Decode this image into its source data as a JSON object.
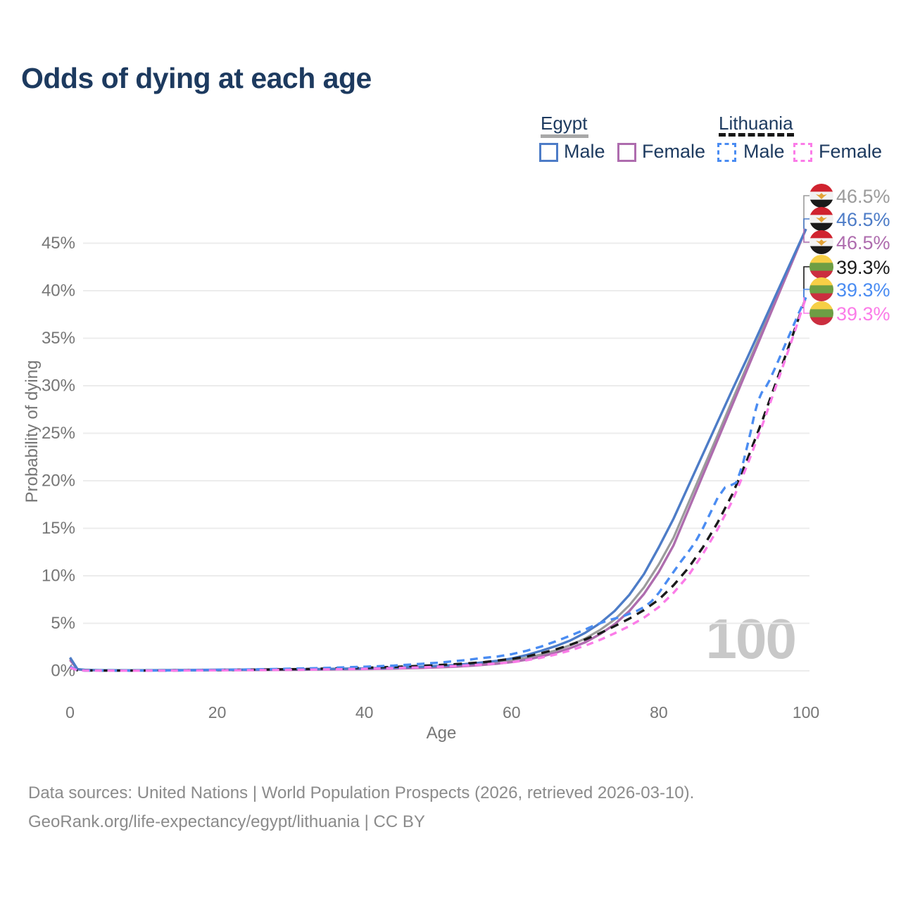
{
  "title": "Odds of dying at each age",
  "watermark": "100",
  "footer": {
    "line1": "Data sources: United Nations | World Population Prospects (2026, retrieved 2026-03-10).",
    "line2": "GeoRank.org/life-expectancy/egypt/lithuania | CC BY"
  },
  "colors": {
    "title": "#1d3a5f",
    "legend_text": "#1d3a5f",
    "axis": "#767676",
    "grid": "#ececec",
    "footer": "#8b8b8b",
    "watermark": "#c8c8c8",
    "egypt_underline": "#a8a8a8",
    "lithuania_underline": "#161616",
    "egypt_male": "#4d7cc7",
    "egypt_female": "#ae6cae",
    "egypt_both": "#9b9b9b",
    "lithuania_male": "#4a8cf2",
    "lithuania_female": "#fb7ce8",
    "lithuania_both": "#1a1a1a",
    "flag_egypt_red": "#d0232f",
    "flag_egypt_white": "#f2f2f2",
    "flag_egypt_black": "#1a1a1a",
    "flag_egypt_gold": "#e3a337",
    "flag_lith_yellow": "#f6cf46",
    "flag_lith_green": "#6d9e44",
    "flag_lith_red": "#cb2e3f"
  },
  "legend": {
    "groups": [
      {
        "label": "Egypt",
        "line_style": "solid",
        "items": [
          {
            "label": "Male",
            "color": "egypt_male",
            "dashed": false
          },
          {
            "label": "Female",
            "color": "egypt_female",
            "dashed": false
          }
        ]
      },
      {
        "label": "Lithuania",
        "line_style": "dashed",
        "items": [
          {
            "label": "Male",
            "color": "lithuania_male",
            "dashed": true
          },
          {
            "label": "Female",
            "color": "lithuania_female",
            "dashed": true
          }
        ]
      }
    ]
  },
  "chart_data": {
    "type": "line",
    "title": "Odds of dying at each age",
    "xlabel": "Age",
    "ylabel": "Probability of dying",
    "xlim": [
      0,
      100
    ],
    "ylim": [
      0,
      48
    ],
    "grid": "horizontal",
    "x_ticks": [
      {
        "v": 0,
        "label": "0"
      },
      {
        "v": 20,
        "label": "20"
      },
      {
        "v": 40,
        "label": "40"
      },
      {
        "v": 60,
        "label": "60"
      },
      {
        "v": 80,
        "label": "80"
      },
      {
        "v": 100,
        "label": "100"
      }
    ],
    "y_ticks": [
      {
        "v": 0,
        "label": "0%"
      },
      {
        "v": 5,
        "label": "5%"
      },
      {
        "v": 10,
        "label": "10%"
      },
      {
        "v": 15,
        "label": "15%"
      },
      {
        "v": 20,
        "label": "20%"
      },
      {
        "v": 25,
        "label": "25%"
      },
      {
        "v": 30,
        "label": "30%"
      },
      {
        "v": 35,
        "label": "35%"
      },
      {
        "v": 40,
        "label": "40%"
      },
      {
        "v": 45,
        "label": "45%"
      }
    ],
    "series": [
      {
        "id": "egypt-both",
        "name": "Egypt Both sexes",
        "color": "egypt_both",
        "dash": null,
        "width": 3.2,
        "points": [
          [
            0,
            1.3
          ],
          [
            1,
            0.16
          ],
          [
            2,
            0.09
          ],
          [
            4,
            0.06
          ],
          [
            8,
            0.05
          ],
          [
            12,
            0.06
          ],
          [
            16,
            0.08
          ],
          [
            20,
            0.1
          ],
          [
            25,
            0.11
          ],
          [
            30,
            0.13
          ],
          [
            35,
            0.17
          ],
          [
            40,
            0.22
          ],
          [
            44,
            0.28
          ],
          [
            48,
            0.37
          ],
          [
            52,
            0.5
          ],
          [
            55,
            0.66
          ],
          [
            58,
            0.88
          ],
          [
            60,
            1.08
          ],
          [
            62,
            1.36
          ],
          [
            64,
            1.72
          ],
          [
            66,
            2.15
          ],
          [
            68,
            2.7
          ],
          [
            70,
            3.4
          ],
          [
            72,
            4.3
          ],
          [
            74,
            5.4
          ],
          [
            76,
            6.9
          ],
          [
            78,
            8.8
          ],
          [
            80,
            11.2
          ],
          [
            82,
            14.0
          ],
          [
            84,
            17.6
          ],
          [
            86,
            21.2
          ],
          [
            88,
            24.8
          ],
          [
            90,
            28.5
          ],
          [
            92,
            32.1
          ],
          [
            94,
            35.7
          ],
          [
            96,
            39.3
          ],
          [
            98,
            42.9
          ],
          [
            100,
            46.5
          ]
        ]
      },
      {
        "id": "egypt-female",
        "name": "Egypt Female",
        "color": "egypt_female",
        "dash": null,
        "width": 3.4,
        "points": [
          [
            0,
            1.15
          ],
          [
            1,
            0.14
          ],
          [
            2,
            0.08
          ],
          [
            4,
            0.05
          ],
          [
            8,
            0.045
          ],
          [
            12,
            0.05
          ],
          [
            16,
            0.06
          ],
          [
            20,
            0.08
          ],
          [
            25,
            0.09
          ],
          [
            30,
            0.11
          ],
          [
            35,
            0.14
          ],
          [
            40,
            0.18
          ],
          [
            44,
            0.24
          ],
          [
            48,
            0.31
          ],
          [
            52,
            0.42
          ],
          [
            55,
            0.56
          ],
          [
            58,
            0.75
          ],
          [
            60,
            0.92
          ],
          [
            62,
            1.17
          ],
          [
            64,
            1.5
          ],
          [
            66,
            1.9
          ],
          [
            68,
            2.4
          ],
          [
            70,
            3.0
          ],
          [
            72,
            3.85
          ],
          [
            74,
            4.9
          ],
          [
            76,
            6.3
          ],
          [
            78,
            8.1
          ],
          [
            80,
            10.4
          ],
          [
            82,
            13.2
          ],
          [
            84,
            16.9
          ],
          [
            86,
            20.6
          ],
          [
            88,
            24.3
          ],
          [
            90,
            28.0
          ],
          [
            92,
            31.7
          ],
          [
            94,
            35.4
          ],
          [
            96,
            39.1
          ],
          [
            98,
            42.8
          ],
          [
            100,
            46.5
          ]
        ]
      },
      {
        "id": "egypt-male",
        "name": "Egypt Male",
        "color": "egypt_male",
        "dash": null,
        "width": 3.4,
        "points": [
          [
            0,
            1.4
          ],
          [
            1,
            0.18
          ],
          [
            2,
            0.1
          ],
          [
            4,
            0.07
          ],
          [
            8,
            0.06
          ],
          [
            12,
            0.07
          ],
          [
            16,
            0.09
          ],
          [
            20,
            0.11
          ],
          [
            25,
            0.13
          ],
          [
            30,
            0.16
          ],
          [
            35,
            0.2
          ],
          [
            40,
            0.26
          ],
          [
            44,
            0.33
          ],
          [
            48,
            0.44
          ],
          [
            52,
            0.6
          ],
          [
            55,
            0.8
          ],
          [
            58,
            1.05
          ],
          [
            60,
            1.3
          ],
          [
            62,
            1.65
          ],
          [
            64,
            2.1
          ],
          [
            66,
            2.6
          ],
          [
            68,
            3.2
          ],
          [
            70,
            4.0
          ],
          [
            72,
            5.0
          ],
          [
            74,
            6.3
          ],
          [
            76,
            8.0
          ],
          [
            78,
            10.2
          ],
          [
            80,
            13.0
          ],
          [
            82,
            16.0
          ],
          [
            84,
            19.4
          ],
          [
            86,
            22.8
          ],
          [
            88,
            26.2
          ],
          [
            90,
            29.6
          ],
          [
            92,
            32.9
          ],
          [
            94,
            36.3
          ],
          [
            96,
            39.7
          ],
          [
            98,
            43.1
          ],
          [
            100,
            46.5
          ]
        ]
      },
      {
        "id": "lithuania-both",
        "name": "Lithuania Both sexes",
        "color": "lithuania_both",
        "dash": "12 9",
        "width": 3.4,
        "points": [
          [
            0,
            0.4
          ],
          [
            1,
            0.05
          ],
          [
            2,
            0.035
          ],
          [
            4,
            0.025
          ],
          [
            8,
            0.02
          ],
          [
            12,
            0.025
          ],
          [
            16,
            0.05
          ],
          [
            20,
            0.08
          ],
          [
            24,
            0.11
          ],
          [
            28,
            0.15
          ],
          [
            32,
            0.19
          ],
          [
            36,
            0.25
          ],
          [
            40,
            0.32
          ],
          [
            44,
            0.41
          ],
          [
            48,
            0.53
          ],
          [
            52,
            0.68
          ],
          [
            56,
            0.9
          ],
          [
            60,
            1.25
          ],
          [
            62,
            1.5
          ],
          [
            64,
            1.85
          ],
          [
            66,
            2.25
          ],
          [
            68,
            2.75
          ],
          [
            70,
            3.3
          ],
          [
            72,
            3.95
          ],
          [
            74,
            4.7
          ],
          [
            76,
            5.5
          ],
          [
            78,
            6.4
          ],
          [
            80,
            7.5
          ],
          [
            82,
            9.0
          ],
          [
            84,
            10.8
          ],
          [
            86,
            13.0
          ],
          [
            88,
            15.6
          ],
          [
            90,
            18.6
          ],
          [
            92,
            22.2
          ],
          [
            94,
            26.2
          ],
          [
            96,
            30.5
          ],
          [
            98,
            34.9
          ],
          [
            100,
            39.3
          ]
        ]
      },
      {
        "id": "lithuania-male",
        "name": "Lithuania Male",
        "color": "lithuania_male",
        "dash": "11 8",
        "width": 3.4,
        "points": [
          [
            0,
            0.45
          ],
          [
            1,
            0.06
          ],
          [
            2,
            0.04
          ],
          [
            4,
            0.03
          ],
          [
            8,
            0.025
          ],
          [
            12,
            0.03
          ],
          [
            16,
            0.06
          ],
          [
            20,
            0.1
          ],
          [
            24,
            0.14
          ],
          [
            28,
            0.19
          ],
          [
            32,
            0.25
          ],
          [
            36,
            0.33
          ],
          [
            40,
            0.43
          ],
          [
            44,
            0.55
          ],
          [
            48,
            0.75
          ],
          [
            50,
            0.85
          ],
          [
            52,
            1.0
          ],
          [
            54,
            1.15
          ],
          [
            56,
            1.35
          ],
          [
            58,
            1.5
          ],
          [
            60,
            1.75
          ],
          [
            62,
            2.1
          ],
          [
            64,
            2.55
          ],
          [
            66,
            3.1
          ],
          [
            68,
            3.7
          ],
          [
            70,
            4.35
          ],
          [
            71,
            4.7
          ],
          [
            72,
            5.0
          ],
          [
            73,
            5.3
          ],
          [
            74,
            5.5
          ],
          [
            75,
            5.7
          ],
          [
            76,
            6.0
          ],
          [
            77,
            6.3
          ],
          [
            78,
            6.7
          ],
          [
            79,
            7.3
          ],
          [
            80,
            8.2
          ],
          [
            81,
            9.3
          ],
          [
            82,
            10.4
          ],
          [
            83,
            11.5
          ],
          [
            84,
            12.5
          ],
          [
            85,
            13.6
          ],
          [
            86,
            15.0
          ],
          [
            87,
            16.6
          ],
          [
            88,
            18.2
          ],
          [
            89,
            19.3
          ],
          [
            90,
            19.6
          ],
          [
            90.5,
            19.8
          ],
          [
            91,
            20.8
          ],
          [
            91.5,
            22.0
          ],
          [
            92,
            23.6
          ],
          [
            92.5,
            25.2
          ],
          [
            93,
            27.0
          ],
          [
            93.5,
            28.4
          ],
          [
            94,
            29.3
          ],
          [
            94.5,
            29.8
          ],
          [
            95,
            30.5
          ],
          [
            96,
            32.2
          ],
          [
            97,
            34.0
          ],
          [
            98,
            35.8
          ],
          [
            99,
            37.6
          ],
          [
            100,
            39.3
          ]
        ]
      },
      {
        "id": "lithuania-female",
        "name": "Lithuania Female",
        "color": "lithuania_female",
        "dash": "10 8",
        "width": 3.4,
        "points": [
          [
            0,
            0.35
          ],
          [
            1,
            0.045
          ],
          [
            2,
            0.03
          ],
          [
            4,
            0.02
          ],
          [
            8,
            0.018
          ],
          [
            12,
            0.02
          ],
          [
            16,
            0.035
          ],
          [
            20,
            0.05
          ],
          [
            24,
            0.07
          ],
          [
            28,
            0.09
          ],
          [
            32,
            0.12
          ],
          [
            36,
            0.16
          ],
          [
            40,
            0.21
          ],
          [
            44,
            0.28
          ],
          [
            48,
            0.37
          ],
          [
            52,
            0.49
          ],
          [
            56,
            0.66
          ],
          [
            60,
            0.9
          ],
          [
            62,
            1.1
          ],
          [
            64,
            1.38
          ],
          [
            66,
            1.72
          ],
          [
            68,
            2.15
          ],
          [
            70,
            2.65
          ],
          [
            72,
            3.25
          ],
          [
            74,
            3.95
          ],
          [
            76,
            4.7
          ],
          [
            78,
            5.6
          ],
          [
            80,
            6.7
          ],
          [
            82,
            8.2
          ],
          [
            84,
            10.0
          ],
          [
            86,
            12.3
          ],
          [
            88,
            14.9
          ],
          [
            90,
            17.9
          ],
          [
            92,
            21.6
          ],
          [
            94,
            25.7
          ],
          [
            96,
            30.1
          ],
          [
            98,
            34.6
          ],
          [
            100,
            39.3
          ]
        ]
      }
    ],
    "callouts": [
      {
        "flag": "egypt",
        "value": "46.5%",
        "color": "egypt_both",
        "group": "solid"
      },
      {
        "flag": "egypt",
        "value": "46.5%",
        "color": "egypt_male",
        "group": "solid"
      },
      {
        "flag": "egypt",
        "value": "46.5%",
        "color": "egypt_female",
        "group": "solid"
      },
      {
        "flag": "lithuania",
        "value": "39.3%",
        "color": "lithuania_both",
        "group": "dashed"
      },
      {
        "flag": "lithuania",
        "value": "39.3%",
        "color": "lithuania_male",
        "group": "dashed"
      },
      {
        "flag": "lithuania",
        "value": "39.3%",
        "color": "lithuania_female",
        "group": "dashed"
      }
    ],
    "end_values": {
      "solid": 46.5,
      "dashed": 39.3
    }
  }
}
